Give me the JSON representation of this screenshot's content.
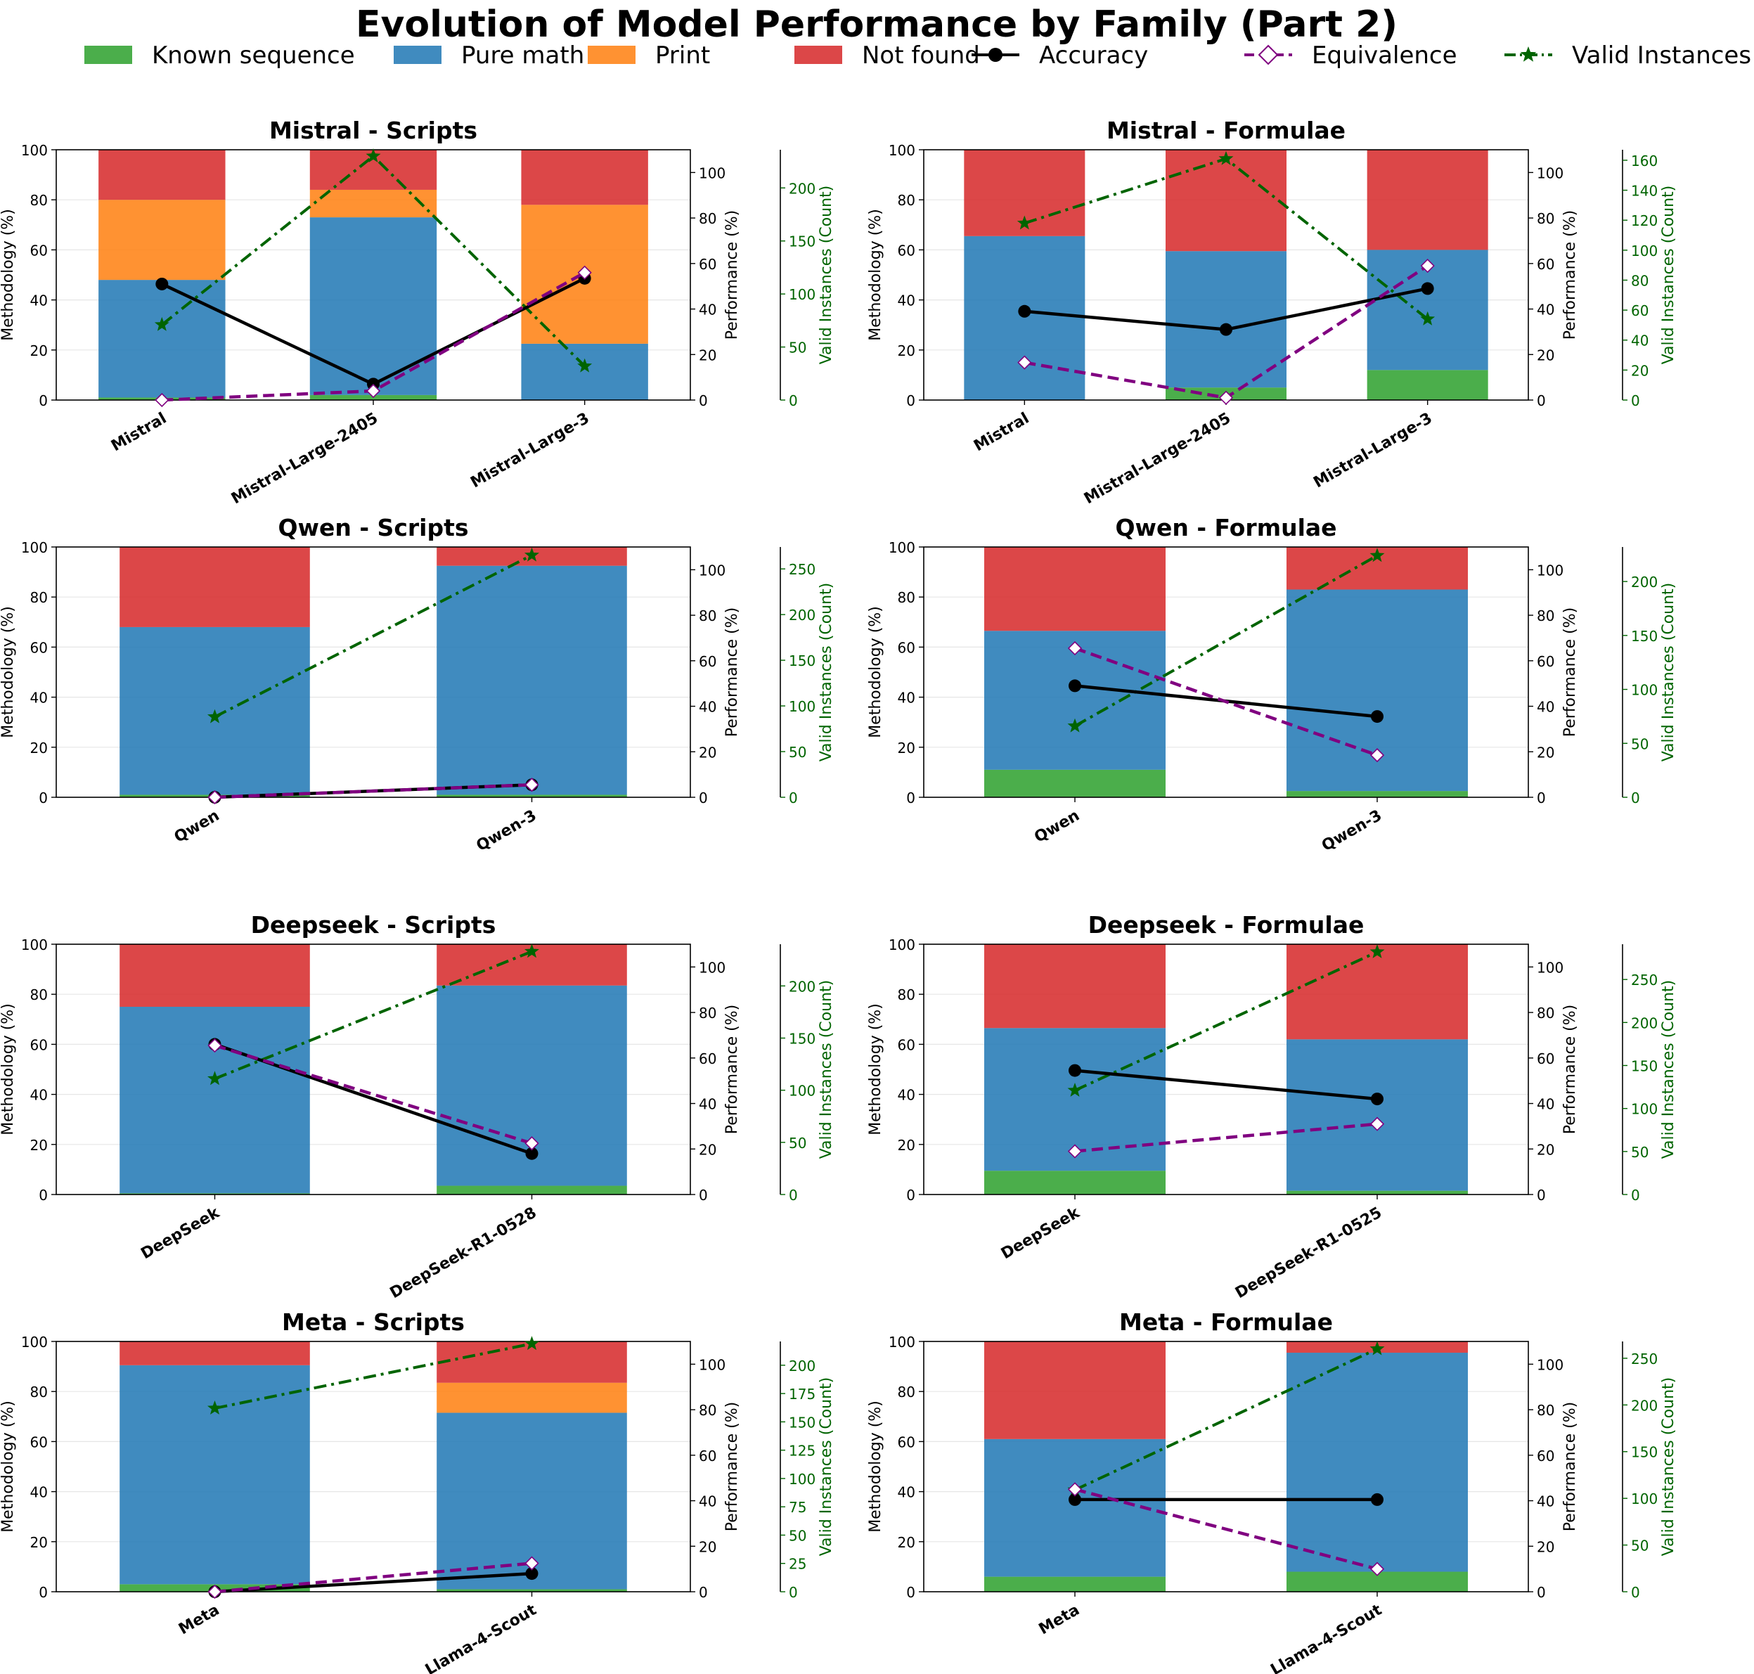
{
  "figure_title": "Evolution of Model Performance by Family (Part 2)",
  "colors": {
    "known": "#2ca02c",
    "pure": "#1f77b4",
    "print": "#ff7f0e",
    "notfound": "#d62728",
    "accuracy": "#000000",
    "equivalence": "#800080",
    "valid": "#006400",
    "valid_axis": "#006400",
    "grid": "#e6e6e6",
    "marker_fill": "#ffffff"
  },
  "legend": [
    {
      "key": "known",
      "label": "Known sequence",
      "kind": "patch"
    },
    {
      "key": "pure",
      "label": "Pure math",
      "kind": "patch"
    },
    {
      "key": "print",
      "label": "Print",
      "kind": "patch"
    },
    {
      "key": "notfound",
      "label": "Not found",
      "kind": "patch"
    },
    {
      "key": "accuracy",
      "label": "Accuracy",
      "kind": "line-circle"
    },
    {
      "key": "equivalence",
      "label": "Equivalence",
      "kind": "line-diamond"
    },
    {
      "key": "valid",
      "label": "Valid Instances",
      "kind": "line-star"
    }
  ],
  "axis_labels": {
    "left": "Methodology (%)",
    "right": "Performance (%)",
    "valid": "Valid Instances (Count)"
  },
  "chart_data": [
    {
      "type": "bar",
      "title": "Mistral - Scripts",
      "categories": [
        "Mistral",
        "Mistral-Large-2405",
        "Mistral-Large-3"
      ],
      "series": [
        {
          "name": "Known sequence",
          "key": "known",
          "values": [
            1,
            2,
            0
          ]
        },
        {
          "name": "Pure math",
          "key": "pure",
          "values": [
            47,
            71,
            22.5
          ]
        },
        {
          "name": "Print",
          "key": "print",
          "values": [
            32,
            11,
            55.5
          ]
        },
        {
          "name": "Not found",
          "key": "notfound",
          "values": [
            20,
            16,
            22
          ]
        }
      ],
      "accuracy": [
        51,
        7,
        53.5
      ],
      "equivalence": [
        0,
        4,
        56
      ],
      "valid": [
        71,
        230,
        32
      ],
      "ylim_left": [
        0,
        100
      ],
      "ylim_right": [
        0,
        110
      ],
      "ylim_valid": [
        0,
        236
      ],
      "valid_ticks": [
        0,
        50,
        100,
        150,
        200
      ]
    },
    {
      "type": "bar",
      "title": "Mistral - Formulae",
      "categories": [
        "Mistral",
        "Mistral-Large-2405",
        "Mistral-Large-3"
      ],
      "series": [
        {
          "name": "Known sequence",
          "key": "known",
          "values": [
            0,
            5,
            12
          ]
        },
        {
          "name": "Pure math",
          "key": "pure",
          "values": [
            65.5,
            54.5,
            48
          ]
        },
        {
          "name": "Print",
          "key": "print",
          "values": [
            0,
            0,
            0
          ]
        },
        {
          "name": "Not found",
          "key": "notfound",
          "values": [
            34.5,
            40.5,
            40
          ]
        }
      ],
      "accuracy": [
        39,
        31,
        49
      ],
      "equivalence": [
        16.5,
        1,
        59
      ],
      "valid": [
        118,
        161,
        54
      ],
      "ylim_left": [
        0,
        100
      ],
      "ylim_right": [
        0,
        110
      ],
      "ylim_valid": [
        0,
        167
      ],
      "valid_ticks": [
        0,
        20,
        40,
        60,
        80,
        100,
        120,
        140,
        160
      ]
    },
    {
      "type": "bar",
      "title": "Qwen - Scripts",
      "categories": [
        "Qwen",
        "Qwen-3"
      ],
      "series": [
        {
          "name": "Known sequence",
          "key": "known",
          "values": [
            1,
            1
          ]
        },
        {
          "name": "Pure math",
          "key": "pure",
          "values": [
            67,
            91.5
          ]
        },
        {
          "name": "Print",
          "key": "print",
          "values": [
            0,
            0
          ]
        },
        {
          "name": "Not found",
          "key": "notfound",
          "values": [
            32,
            7.5
          ]
        }
      ],
      "accuracy": [
        0,
        5.5
      ],
      "equivalence": [
        0,
        5.5
      ],
      "valid": [
        88,
        265
      ],
      "ylim_left": [
        0,
        100
      ],
      "ylim_right": [
        0,
        110
      ],
      "ylim_valid": [
        0,
        274
      ],
      "valid_ticks": [
        0,
        50,
        100,
        150,
        200,
        250
      ]
    },
    {
      "type": "bar",
      "title": "Qwen - Formulae",
      "categories": [
        "Qwen",
        "Qwen-3"
      ],
      "series": [
        {
          "name": "Known sequence",
          "key": "known",
          "values": [
            11,
            2.5
          ]
        },
        {
          "name": "Pure math",
          "key": "pure",
          "values": [
            55.5,
            80.5
          ]
        },
        {
          "name": "Print",
          "key": "print",
          "values": [
            0,
            0
          ]
        },
        {
          "name": "Not found",
          "key": "notfound",
          "values": [
            33.5,
            17
          ]
        }
      ],
      "accuracy": [
        49,
        35.5
      ],
      "equivalence": [
        65.5,
        18.5
      ],
      "valid": [
        66,
        224
      ],
      "ylim_left": [
        0,
        100
      ],
      "ylim_right": [
        0,
        110
      ],
      "ylim_valid": [
        0,
        232
      ],
      "valid_ticks": [
        0,
        50,
        100,
        150,
        200
      ]
    },
    {
      "type": "bar",
      "title": "Deepseek - Scripts",
      "categories": [
        "DeepSeek",
        "DeepSeek-R1-0528"
      ],
      "series": [
        {
          "name": "Known sequence",
          "key": "known",
          "values": [
            0.5,
            3.5
          ]
        },
        {
          "name": "Pure math",
          "key": "pure",
          "values": [
            74.5,
            80
          ]
        },
        {
          "name": "Print",
          "key": "print",
          "values": [
            0,
            0
          ]
        },
        {
          "name": "Not found",
          "key": "notfound",
          "values": [
            25,
            16.5
          ]
        }
      ],
      "accuracy": [
        66,
        18
      ],
      "equivalence": [
        65.5,
        22.5
      ],
      "valid": [
        111,
        233
      ],
      "ylim_left": [
        0,
        100
      ],
      "ylim_right": [
        0,
        110
      ],
      "ylim_valid": [
        0,
        240
      ],
      "valid_ticks": [
        0,
        50,
        100,
        150,
        200
      ]
    },
    {
      "type": "bar",
      "title": "Deepseek - Formulae",
      "categories": [
        "DeepSeek",
        "DeepSeek-R1-0525"
      ],
      "series": [
        {
          "name": "Known sequence",
          "key": "known",
          "values": [
            9.5,
            1.5
          ]
        },
        {
          "name": "Pure math",
          "key": "pure",
          "values": [
            57,
            60.5
          ]
        },
        {
          "name": "Print",
          "key": "print",
          "values": [
            0,
            0
          ]
        },
        {
          "name": "Not found",
          "key": "notfound",
          "values": [
            33.5,
            38
          ]
        }
      ],
      "accuracy": [
        54.5,
        42
      ],
      "equivalence": [
        19,
        31
      ],
      "valid": [
        121,
        282
      ],
      "ylim_left": [
        0,
        100
      ],
      "ylim_right": [
        0,
        110
      ],
      "ylim_valid": [
        0,
        291
      ],
      "valid_ticks": [
        0,
        50,
        100,
        150,
        200,
        250
      ]
    },
    {
      "type": "bar",
      "title": "Meta - Scripts",
      "categories": [
        "Meta",
        "Llama-4-Scout"
      ],
      "series": [
        {
          "name": "Known sequence",
          "key": "known",
          "values": [
            3,
            1
          ]
        },
        {
          "name": "Pure math",
          "key": "pure",
          "values": [
            87.5,
            70.5
          ]
        },
        {
          "name": "Print",
          "key": "print",
          "values": [
            0,
            12
          ]
        },
        {
          "name": "Not found",
          "key": "notfound",
          "values": [
            9.5,
            16.5
          ]
        }
      ],
      "accuracy": [
        0,
        8
      ],
      "equivalence": [
        0,
        12.5
      ],
      "valid": [
        162,
        219
      ],
      "ylim_left": [
        0,
        100
      ],
      "ylim_right": [
        0,
        110
      ],
      "ylim_valid": [
        0,
        221
      ],
      "valid_ticks": [
        0,
        25,
        50,
        75,
        100,
        125,
        150,
        175,
        200
      ]
    },
    {
      "type": "bar",
      "title": "Meta - Formulae",
      "categories": [
        "Meta",
        "Llama-4-Scout"
      ],
      "series": [
        {
          "name": "Known sequence",
          "key": "known",
          "values": [
            6,
            8
          ]
        },
        {
          "name": "Pure math",
          "key": "pure",
          "values": [
            55,
            87.5
          ]
        },
        {
          "name": "Print",
          "key": "print",
          "values": [
            0,
            0
          ]
        },
        {
          "name": "Not found",
          "key": "notfound",
          "values": [
            39,
            4.5
          ]
        }
      ],
      "accuracy": [
        40.5,
        40.5
      ],
      "equivalence": [
        45,
        10
      ],
      "valid": [
        109,
        260
      ],
      "ylim_left": [
        0,
        100
      ],
      "ylim_right": [
        0,
        110
      ],
      "ylim_valid": [
        0,
        268
      ],
      "valid_ticks": [
        0,
        50,
        100,
        150,
        200,
        250
      ]
    }
  ]
}
